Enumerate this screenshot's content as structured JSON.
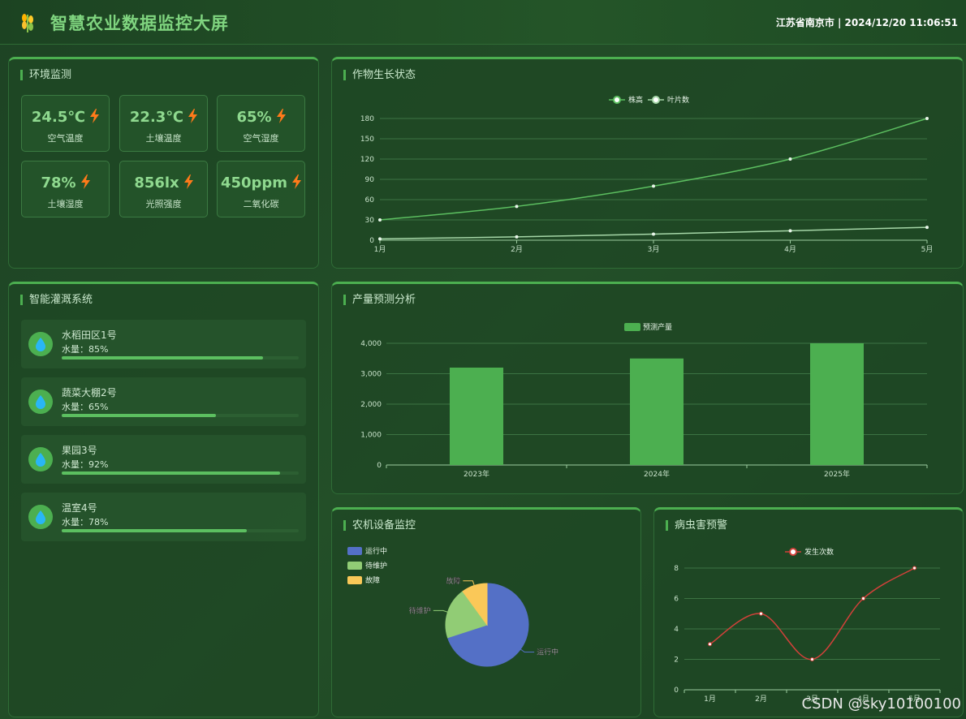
{
  "header": {
    "title": "智慧农业数据监控大屏",
    "info": "江苏省南京市 | 2024/12/20 11:06:51"
  },
  "env": {
    "title": "环境监测",
    "cards": [
      {
        "value": "24.5℃",
        "label": "空气温度"
      },
      {
        "value": "22.3℃",
        "label": "土壤温度"
      },
      {
        "value": "65%",
        "label": "空气湿度"
      },
      {
        "value": "78%",
        "label": "土壤湿度"
      },
      {
        "value": "856lx",
        "label": "光照强度"
      },
      {
        "value": "450ppm",
        "label": "二氧化碳"
      }
    ]
  },
  "irrigation": {
    "title": "智能灌溉系统",
    "items": [
      {
        "name": "水稻田区1号",
        "water": "水量：85%",
        "level": 0.85
      },
      {
        "name": "蔬菜大棚2号",
        "water": "水量：65%",
        "level": 0.65
      },
      {
        "name": "果园3号",
        "water": "水量：92%",
        "level": 0.92
      },
      {
        "name": "温室4号",
        "water": "水量：78%",
        "level": 0.78
      }
    ]
  },
  "growth": {
    "title": "作物生长状态"
  },
  "yield": {
    "title": "产量预测分析"
  },
  "machinery": {
    "title": "农机设备监控"
  },
  "pest": {
    "title": "病虫害预警"
  },
  "watermark": "CSDN @sky10100100",
  "colors": {
    "accent": "#4caf50",
    "line": "#5cbf60",
    "pest": "#d2413a",
    "pie1": "#5470c6",
    "pie2": "#91cc75",
    "pie3": "#fac858"
  },
  "chart_data": [
    {
      "type": "line",
      "categories": [
        "1月",
        "2月",
        "3月",
        "4月",
        "5月"
      ],
      "series": [
        {
          "name": "株高",
          "values": [
            30,
            50,
            80,
            120,
            180
          ]
        },
        {
          "name": "叶片数",
          "values": [
            2,
            5,
            9,
            14,
            19
          ]
        }
      ],
      "yticks": [
        "0",
        "30",
        "60",
        "90",
        "120",
        "150",
        "180"
      ],
      "ylim": [
        0,
        180
      ]
    },
    {
      "type": "bar",
      "categories": [
        "2023年",
        "2024年",
        "2025年"
      ],
      "series": [
        {
          "name": "预测产量",
          "values": [
            3200,
            3500,
            4000
          ]
        }
      ],
      "yticks": [
        "0",
        "1,000",
        "2,000",
        "3,000",
        "4,000"
      ],
      "ylim": [
        0,
        4000
      ]
    },
    {
      "type": "pie",
      "slices": [
        {
          "name": "运行中",
          "value": 70
        },
        {
          "name": "待维护",
          "value": 20
        },
        {
          "name": "故障",
          "value": 10
        }
      ]
    },
    {
      "type": "line",
      "categories": [
        "1月",
        "2月",
        "3月",
        "4月",
        "5月"
      ],
      "series": [
        {
          "name": "发生次数",
          "values": [
            3,
            5,
            2,
            6,
            8
          ]
        }
      ],
      "yticks": [
        "0",
        "2",
        "4",
        "6",
        "8"
      ],
      "ylim": [
        0,
        8
      ]
    }
  ]
}
